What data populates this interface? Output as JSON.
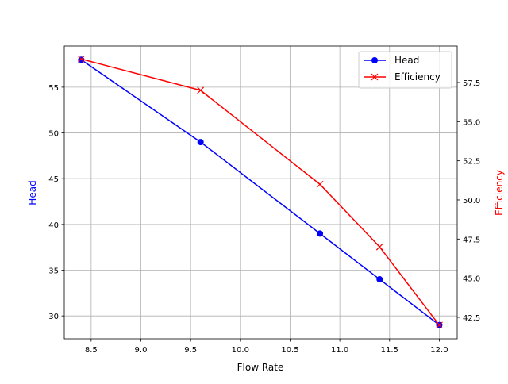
{
  "chart_data": {
    "type": "line",
    "xlabel": "Flow Rate",
    "ylabel": "Head",
    "ylabel_right": "Efficiency",
    "x": [
      8.4,
      9.6,
      10.8,
      11.4,
      12.0
    ],
    "xlim": [
      8.23,
      12.18
    ],
    "ylim": [
      27.5,
      59.5
    ],
    "ylim_right": [
      41.13,
      59.83
    ],
    "xticks": [
      "8.5",
      "9.0",
      "9.5",
      "10.0",
      "10.5",
      "11.0",
      "11.5",
      "12.0"
    ],
    "yticks": [
      "30",
      "35",
      "40",
      "45",
      "50",
      "55"
    ],
    "yticks_right": [
      "42.5",
      "45.0",
      "47.5",
      "50.0",
      "52.5",
      "55.0",
      "57.5"
    ],
    "grid": true,
    "legend_position": "top-right",
    "series": [
      {
        "name": "Head",
        "axis": "left",
        "values": [
          58,
          49,
          39,
          34,
          29
        ],
        "color": "#0000ff",
        "marker": "circle"
      },
      {
        "name": "Efficiency",
        "axis": "right",
        "values": [
          59,
          57,
          51,
          47,
          42
        ],
        "color": "#ff0000",
        "marker": "x"
      }
    ]
  }
}
